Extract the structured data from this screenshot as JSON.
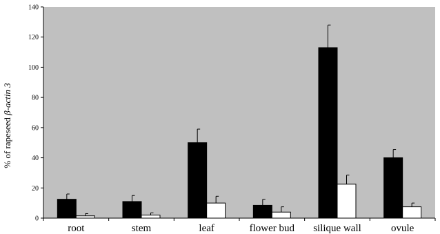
{
  "chart_data": {
    "type": "bar",
    "title": "",
    "xlabel": "",
    "ylabel_prefix": "% of rapeseed ",
    "ylabel_italic": "β-actin 3",
    "ylim": [
      0,
      140
    ],
    "yticks": [
      0,
      20,
      40,
      60,
      80,
      100,
      120,
      140
    ],
    "grid": false,
    "legend": "none",
    "categories": [
      "root",
      "stem",
      "leaf",
      "flower bud",
      "silique wall",
      "ovule"
    ],
    "series": [
      {
        "color": "#000000",
        "values": [
          12.5,
          11,
          50,
          8.5,
          113,
          40
        ],
        "errors": [
          3.5,
          4,
          9,
          4,
          15,
          5.5
        ]
      },
      {
        "color": "#ffffff",
        "values": [
          1.5,
          2,
          10,
          4,
          22.5,
          7.5
        ],
        "errors": [
          1.5,
          1.5,
          4.5,
          3.5,
          6,
          2.5
        ]
      }
    ],
    "plot_background": "#c0c0c0"
  }
}
